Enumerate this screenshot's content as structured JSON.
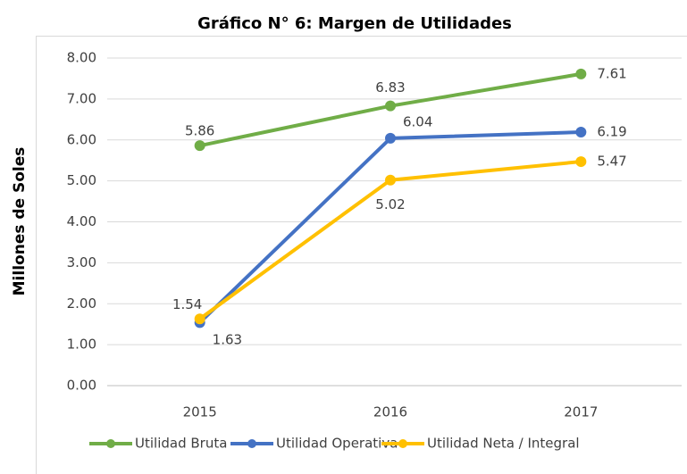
{
  "chart_data": {
    "type": "line",
    "title": "Gráfico N° 6: Margen de Utilidades",
    "y_label": "Millones de Soles",
    "categories": [
      "2015",
      "2016",
      "2017"
    ],
    "series": [
      {
        "name": "Utilidad Bruta",
        "color": "#70ad47",
        "values": [
          5.86,
          6.83,
          7.61
        ]
      },
      {
        "name": "Utilidad Operativa",
        "color": "#4472c4",
        "values": [
          1.54,
          6.04,
          6.19
        ]
      },
      {
        "name": "Utilidad Neta / Integral",
        "color": "#ffc000",
        "values": [
          1.63,
          5.02,
          5.47
        ]
      }
    ],
    "ylim": [
      0,
      8
    ],
    "yticks": [
      {
        "value": 0,
        "label": "0.00"
      },
      {
        "value": 1,
        "label": "1.00"
      },
      {
        "value": 2,
        "label": "2.00"
      },
      {
        "value": 3,
        "label": "3.00"
      },
      {
        "value": 4,
        "label": "4.00"
      },
      {
        "value": 5,
        "label": "5.00"
      },
      {
        "value": 6,
        "label": "6.00"
      },
      {
        "value": 7,
        "label": "7.00"
      },
      {
        "value": 8,
        "label": "8.00"
      }
    ],
    "grid": true,
    "legend": "bottom"
  }
}
